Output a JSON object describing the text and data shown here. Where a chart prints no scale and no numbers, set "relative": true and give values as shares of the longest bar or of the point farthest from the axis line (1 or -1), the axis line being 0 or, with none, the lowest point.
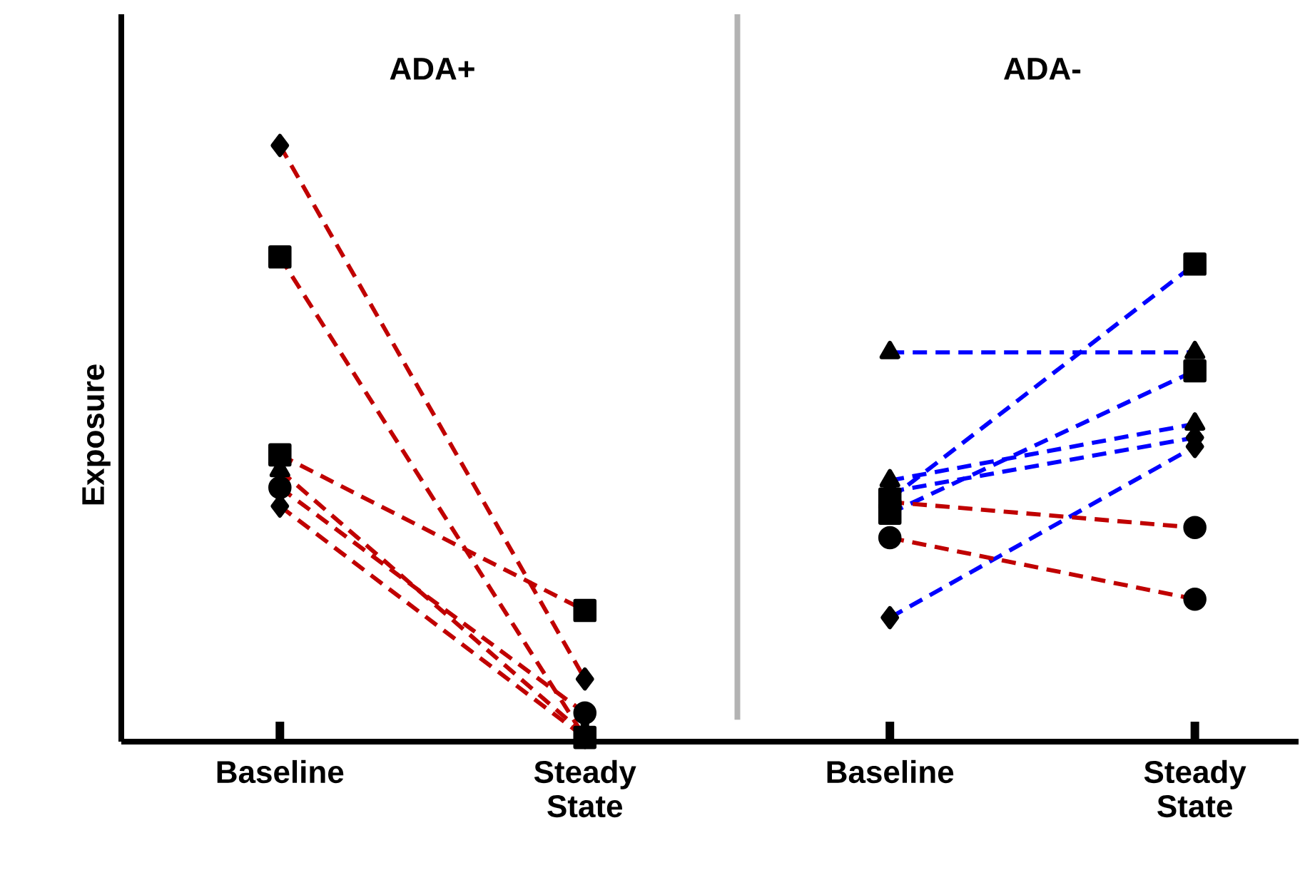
{
  "chart_data": {
    "type": "line",
    "relative": true,
    "ylabel": "Exposure",
    "line_style": "dashed",
    "categories": [
      "Baseline",
      "Steady State",
      "Baseline",
      "Steady State"
    ],
    "annotations": [
      "ADA+",
      "ADA-"
    ],
    "series": [
      {
        "color": "#c00000",
        "marker": "diamond",
        "values": [
          1,
          0.105,
          null,
          null
        ]
      },
      {
        "color": "#c00000",
        "marker": "square",
        "values": [
          0.813,
          0.007,
          null,
          null
        ]
      },
      {
        "color": "#c00000",
        "marker": "square",
        "values": [
          0.481,
          0.22,
          null,
          null
        ]
      },
      {
        "color": "#c00000",
        "marker": "triangle",
        "values": [
          0.455,
          0.012,
          null,
          null
        ]
      },
      {
        "color": "#c00000",
        "marker": "circle",
        "values": [
          0.426,
          0.048,
          null,
          null
        ]
      },
      {
        "color": "#c00000",
        "marker": "diamond",
        "values": [
          0.395,
          0.007,
          null,
          null
        ]
      },
      {
        "color": "#0000ff",
        "marker": "triangle",
        "values": [
          null,
          null,
          0.653,
          0.653
        ]
      },
      {
        "color": "#0000ff",
        "marker": "square",
        "values": [
          null,
          null,
          0.407,
          0.801
        ]
      },
      {
        "color": "#0000ff",
        "marker": "square",
        "values": [
          null,
          null,
          0.383,
          0.622
        ]
      },
      {
        "color": "#0000ff",
        "marker": "triangle",
        "values": [
          null,
          null,
          0.438,
          0.533
        ]
      },
      {
        "color": "#0000ff",
        "marker": "diamond",
        "values": [
          null,
          null,
          0.419,
          0.51
        ]
      },
      {
        "color": "#0000ff",
        "marker": "diamond",
        "values": [
          null,
          null,
          0.208,
          0.495
        ]
      },
      {
        "color": "#c00000",
        "marker": "circle",
        "values": [
          null,
          null,
          0.402,
          0.359
        ]
      },
      {
        "color": "#c00000",
        "marker": "circle",
        "values": [
          null,
          null,
          0.342,
          0.239
        ]
      }
    ]
  }
}
